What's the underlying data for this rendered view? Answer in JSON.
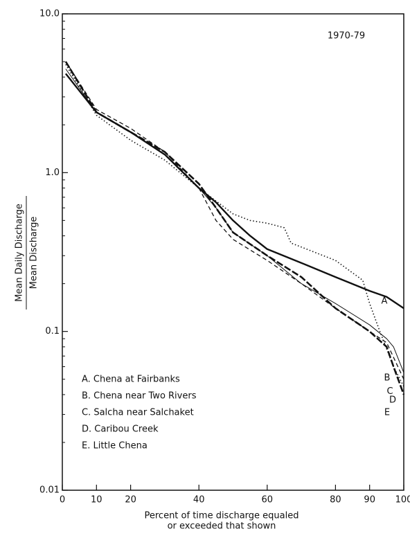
{
  "chart_data": {
    "type": "line",
    "log_y": true,
    "annotation": "1970-79",
    "y_label_top": "Mean Daily Discharge",
    "y_label_bottom": "Mean Discharge",
    "x_label": [
      "Percent of time discharge equaled",
      "or exceeded  that shown"
    ],
    "xlim": [
      0,
      100
    ],
    "xticks": [
      0,
      10,
      20,
      40,
      60,
      80,
      90,
      100
    ],
    "ylim": [
      0.01,
      10
    ],
    "yticks": [
      {
        "value": 10,
        "label": "10.0"
      },
      {
        "value": 1,
        "label": "1.0"
      },
      0.1,
      0.01
    ],
    "series": [
      {
        "name": "A. Chena at Fairbanks",
        "label": "A",
        "color": "#111",
        "dash": "solid-thick",
        "x": [
          1,
          10,
          20,
          30,
          40,
          45,
          50,
          55,
          60,
          70,
          80,
          90,
          95,
          100
        ],
        "values": [
          4.2,
          2.4,
          1.8,
          1.3,
          0.8,
          0.65,
          0.5,
          0.4,
          0.33,
          0.27,
          0.22,
          0.18,
          0.165,
          0.14
        ]
      },
      {
        "name": "B. Chena near Two Rivers",
        "label": "B",
        "color": "#111",
        "dash": "solid-thin",
        "x": [
          1,
          10,
          20,
          30,
          40,
          45,
          50,
          60,
          70,
          80,
          90,
          95,
          97,
          100
        ],
        "values": [
          4.5,
          2.4,
          1.8,
          1.3,
          0.8,
          0.6,
          0.42,
          0.3,
          0.2,
          0.15,
          0.11,
          0.09,
          0.08,
          0.055
        ]
      },
      {
        "name": "C. Salcha near Salchaket",
        "label": "C",
        "color": "#111",
        "dash": "dashed",
        "x": [
          1,
          10,
          20,
          30,
          40,
          45,
          50,
          60,
          70,
          80,
          90,
          95,
          100
        ],
        "values": [
          5.0,
          2.5,
          1.9,
          1.35,
          0.8,
          0.5,
          0.38,
          0.28,
          0.2,
          0.14,
          0.1,
          0.085,
          0.05
        ]
      },
      {
        "name": "D. Caribou Creek",
        "label": "D",
        "color": "#111",
        "dash": "dotted",
        "x": [
          1,
          10,
          20,
          30,
          40,
          50,
          55,
          60,
          65,
          67,
          70,
          80,
          88,
          90,
          93,
          97,
          100
        ],
        "values": [
          4.8,
          2.3,
          1.6,
          1.2,
          0.8,
          0.55,
          0.5,
          0.48,
          0.45,
          0.36,
          0.34,
          0.28,
          0.21,
          0.15,
          0.1,
          0.06,
          0.045
        ]
      },
      {
        "name": "E. Little Chena",
        "label": "E",
        "color": "#111",
        "dash": "heavy-dash",
        "x": [
          1,
          10,
          20,
          30,
          40,
          45,
          50,
          60,
          70,
          80,
          90,
          95,
          97,
          100
        ],
        "values": [
          5.0,
          2.4,
          1.8,
          1.35,
          0.85,
          0.6,
          0.42,
          0.3,
          0.22,
          0.14,
          0.1,
          0.08,
          0.06,
          0.04
        ]
      }
    ]
  }
}
